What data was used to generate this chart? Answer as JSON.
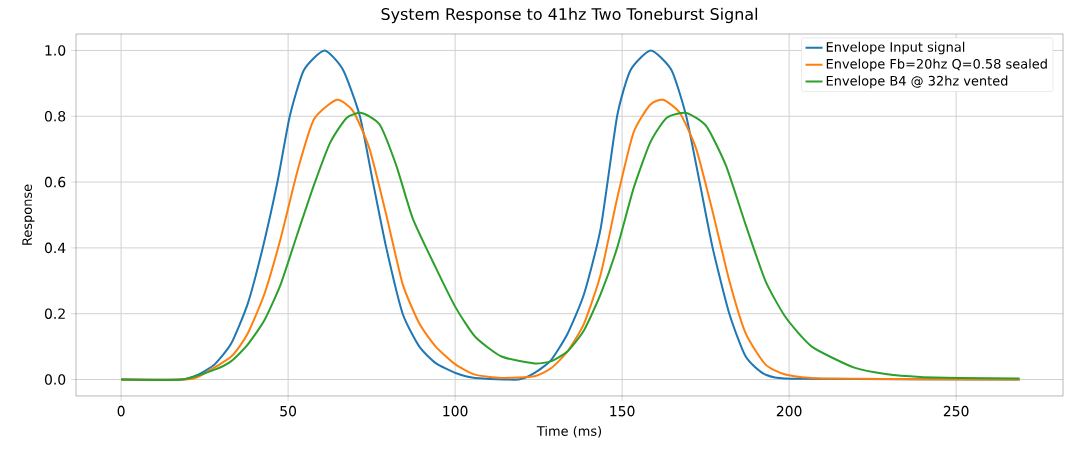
{
  "chart_data": {
    "type": "line",
    "title": "System Response to 41hz Two Toneburst Signal",
    "xlabel": "Time (ms)",
    "ylabel": "Response",
    "xlim": [
      -13.5,
      282
    ],
    "ylim": [
      -0.05,
      1.05
    ],
    "xticks": [
      0,
      50,
      100,
      150,
      200,
      250
    ],
    "yticks": [
      {
        "value": 0,
        "label": "0.0"
      },
      {
        "value": 0.2,
        "label": "0.2"
      },
      {
        "value": 0.4,
        "label": "0.4"
      },
      {
        "value": 0.6,
        "label": "0.6"
      },
      {
        "value": 0.8,
        "label": "0.8"
      },
      {
        "value": 1.0,
        "label": "1.0"
      }
    ],
    "grid": true,
    "legend": "top right",
    "series": [
      {
        "name": "Envelope Input signal",
        "color": "#1f77b4",
        "x": [
          0,
          18.2,
          23.1,
          28.0,
          33.0,
          37.9,
          42.4,
          46.8,
          50.5,
          54.7,
          60.9,
          66.5,
          71.5,
          75.4,
          79.4,
          84.3,
          89.3,
          94.2,
          100.1,
          106,
          119,
          123.8,
          128.8,
          133.7,
          138.6,
          143.6,
          148.5,
          152.5,
          158.6,
          164.8,
          169.2,
          173.2,
          177.1,
          182.1,
          187.0,
          192.9,
          202.8,
          269
        ],
        "values": [
          0,
          0,
          0.015,
          0.046,
          0.11,
          0.23,
          0.4,
          0.6,
          0.8,
          0.94,
          1.0,
          0.94,
          0.8,
          0.6,
          0.4,
          0.2,
          0.1,
          0.05,
          0.02,
          0.005,
          0,
          0.02,
          0.06,
          0.14,
          0.26,
          0.46,
          0.8,
          0.94,
          1.0,
          0.94,
          0.8,
          0.6,
          0.4,
          0.2,
          0.07,
          0.015,
          0.002,
          0
        ]
      },
      {
        "name": "Envelope Fb=20hz Q=0.58 sealed",
        "color": "#ff7f0e",
        "x": [
          0,
          19,
          23.1,
          33.0,
          37.9,
          42.9,
          47.8,
          52.7,
          57.7,
          64.6,
          69.5,
          74.4,
          79.4,
          84.3,
          89.3,
          94.2,
          100.1,
          106,
          113.9,
          123.8,
          128.8,
          133.7,
          138.6,
          143.6,
          148.5,
          153.4,
          158.4,
          162.3,
          167.3,
          172.2,
          177.1,
          182.1,
          187.0,
          192.9,
          198.9,
          210,
          269
        ],
        "values": [
          0,
          0,
          0.008,
          0.07,
          0.14,
          0.26,
          0.43,
          0.63,
          0.79,
          0.85,
          0.815,
          0.7,
          0.5,
          0.29,
          0.17,
          0.1,
          0.046,
          0.015,
          0.005,
          0.01,
          0.035,
          0.086,
          0.17,
          0.32,
          0.55,
          0.75,
          0.835,
          0.85,
          0.81,
          0.7,
          0.51,
          0.3,
          0.14,
          0.046,
          0.015,
          0.003,
          0
        ]
      },
      {
        "name": "Envelope B4 @ 32hz vented",
        "color": "#2ca02c",
        "x": [
          0,
          18.2,
          28.0,
          33.0,
          37.9,
          42.9,
          47.8,
          52.7,
          57.7,
          62.6,
          67.5,
          72.0,
          77.4,
          82.4,
          87.3,
          94.2,
          100.1,
          106,
          113.9,
          123.8,
          128.8,
          133.7,
          138.6,
          143.6,
          148.5,
          153.4,
          158.4,
          163.3,
          169.2,
          175.2,
          181.1,
          187.0,
          192.9,
          198.9,
          206.8,
          219.5,
          229.4,
          239.3,
          251,
          269
        ],
        "values": [
          0,
          0,
          0.03,
          0.056,
          0.106,
          0.18,
          0.29,
          0.44,
          0.59,
          0.72,
          0.795,
          0.81,
          0.775,
          0.65,
          0.49,
          0.34,
          0.22,
          0.13,
          0.07,
          0.049,
          0.056,
          0.086,
          0.15,
          0.26,
          0.4,
          0.58,
          0.72,
          0.795,
          0.81,
          0.77,
          0.65,
          0.47,
          0.3,
          0.19,
          0.1,
          0.036,
          0.016,
          0.008,
          0.005,
          0.003
        ]
      }
    ]
  }
}
